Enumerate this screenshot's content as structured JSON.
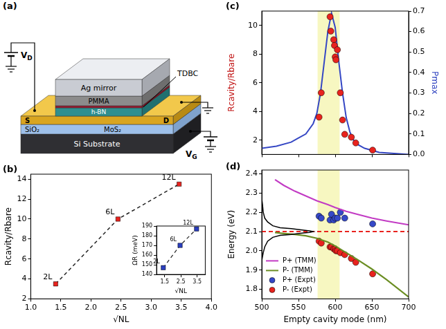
{
  "diagram": {
    "panel": "(a)",
    "labels": {
      "ag": "Ag mirror",
      "pmma": "PMMA",
      "tdbc": "TDBC",
      "hbn": "h-BN",
      "source": "S",
      "drain": "D",
      "sio2": "SiO₂",
      "mos2": "MoS₂",
      "substrate": "Si Substrate",
      "vd": {
        "text": "V",
        "sub": "D"
      },
      "vg": {
        "text": "V",
        "sub": "G"
      }
    }
  },
  "chart_data": [
    {
      "panel": "(b)",
      "type": "line",
      "x_label": "√NL",
      "y_label": "Rcavity/Rbare",
      "x": [
        1.414,
        2.449,
        3.464
      ],
      "values": [
        3.5,
        10,
        13.5
      ],
      "point_labels": [
        "2L",
        "6L",
        "12L"
      ],
      "color": "#e8231e",
      "marker": "square",
      "line_style": "dashed",
      "xlim": [
        1,
        4
      ],
      "xticks": [
        {
          "value": 1,
          "label": "1.0"
        },
        1.5,
        {
          "value": 2,
          "label": "2.0"
        },
        2.5,
        {
          "value": 3,
          "label": "3.0"
        },
        3.5,
        {
          "value": 4,
          "label": "4.0"
        }
      ],
      "ylim": [
        2,
        14.5
      ],
      "yticks": [
        2,
        4,
        6,
        8,
        10,
        12,
        14
      ],
      "grid": false,
      "inset": {
        "type": "line",
        "x_label": "√NL",
        "y_label": "ΩR (meV)",
        "x": [
          1.414,
          2.449,
          3.464
        ],
        "values": [
          147,
          170,
          187
        ],
        "point_labels": [
          "2L",
          "6L",
          "12L"
        ],
        "color": "#2b3fbf",
        "marker": "square",
        "line_style": "dashed",
        "xlim": [
          1,
          4
        ],
        "xticks": [
          1.5,
          2.5,
          3.5
        ],
        "ylim": [
          140,
          190
        ],
        "yticks": [
          140,
          150,
          160,
          170,
          180,
          190
        ],
        "grid": false
      }
    },
    {
      "panel": "(c)",
      "type": "scatter",
      "y_label": "Rcavity/Rbare",
      "y2_label": "Pmax",
      "xlim": [
        500,
        700
      ],
      "xticks": [
        500,
        550,
        600,
        650,
        700
      ],
      "ylim": [
        1,
        11
      ],
      "yticks": [
        2,
        4,
        6,
        8,
        10
      ],
      "y2lim": [
        0,
        0.7
      ],
      "y2ticks": [
        {
          "value": 0,
          "label": "0.0"
        },
        0.1,
        0.2,
        0.3,
        0.4,
        0.5,
        0.6,
        0.7
      ],
      "tick_labels": "y",
      "grid": false,
      "highlight": {
        "range": [
          576,
          606
        ],
        "color": "#f3f3a6"
      },
      "series": [
        {
          "type": "scatter",
          "marker": "circle",
          "color": "#e8231e",
          "x": [
            578,
            581,
            593,
            594,
            598,
            599,
            600,
            601,
            603,
            607,
            610,
            613,
            622,
            628,
            651
          ],
          "values": [
            3.6,
            5.3,
            10.6,
            9.6,
            9.0,
            8.6,
            7.8,
            7.6,
            8.3,
            5.3,
            3.4,
            2.4,
            2.2,
            1.8,
            1.3
          ]
        },
        {
          "type": "line",
          "axis": "y2",
          "color": "#3547c4",
          "line_style": "solid",
          "x": [
            500,
            520,
            540,
            550,
            560,
            570,
            575,
            580,
            585,
            590,
            595,
            600,
            605,
            610,
            615,
            620,
            625,
            630,
            640,
            650,
            660,
            680,
            700
          ],
          "values": [
            0.03,
            0.04,
            0.06,
            0.08,
            0.1,
            0.15,
            0.2,
            0.3,
            0.45,
            0.6,
            0.69,
            0.62,
            0.45,
            0.3,
            0.18,
            0.11,
            0.07,
            0.05,
            0.03,
            0.02,
            0.01,
            0.005,
            0
          ]
        }
      ]
    },
    {
      "panel": "(d)",
      "type": "scatter",
      "x_label": "Empty cavity mode (nm)",
      "y_label": "Energy (eV)",
      "xlim": [
        500,
        700
      ],
      "xticks": [
        500,
        550,
        600,
        650,
        700
      ],
      "ylim": [
        1.75,
        2.42
      ],
      "yticks": [
        1.8,
        1.9,
        {
          "value": 2,
          "label": "2.0"
        },
        2.1,
        2.2,
        2.3,
        2.4
      ],
      "grid": false,
      "legend": "lower left",
      "highlight": {
        "range": [
          576,
          606
        ],
        "color": "#f3f3a6"
      },
      "reference_line": {
        "y": 2.1,
        "color": "#e8231e",
        "line_style": "dashed"
      },
      "absorption_curve": {
        "color": "#000000",
        "x": [
          500,
          501,
          502,
          504,
          508,
          515,
          525,
          540,
          555,
          565,
          570,
          565,
          555,
          540,
          525,
          515,
          508,
          504,
          502,
          501,
          500
        ],
        "values": [
          2.27,
          2.24,
          2.2,
          2.17,
          2.15,
          2.13,
          2.12,
          2.115,
          2.108,
          2.104,
          2.1,
          2.096,
          2.092,
          2.085,
          2.08,
          2.07,
          2.05,
          2.02,
          1.99,
          1.97,
          1.95
        ]
      },
      "series": [
        {
          "name": "P+ (TMM)",
          "type": "line",
          "line_style": "solid",
          "color": "#c23bc4",
          "x": [
            518,
            530,
            545,
            560,
            575,
            590,
            600,
            615,
            630,
            650,
            670,
            700
          ],
          "values": [
            2.37,
            2.34,
            2.31,
            2.285,
            2.26,
            2.24,
            2.225,
            2.205,
            2.19,
            2.17,
            2.155,
            2.135
          ]
        },
        {
          "name": "P- (TMM)",
          "type": "line",
          "line_style": "solid",
          "color": "#6b8e23",
          "x": [
            518,
            530,
            545,
            560,
            575,
            590,
            600,
            615,
            630,
            650,
            670,
            700
          ],
          "values": [
            2.095,
            2.09,
            2.085,
            2.078,
            2.065,
            2.045,
            2.025,
            1.99,
            1.955,
            1.905,
            1.85,
            1.76
          ]
        },
        {
          "name": "P+ (Expt)",
          "type": "scatter",
          "marker": "circle",
          "color": "#3548c8",
          "x": [
            578,
            581,
            593,
            595,
            598,
            600,
            603,
            607,
            613,
            651
          ],
          "values": [
            2.18,
            2.17,
            2.16,
            2.19,
            2.16,
            2.17,
            2.17,
            2.2,
            2.17,
            2.14
          ]
        },
        {
          "name": "P- (Expt)",
          "type": "scatter",
          "marker": "circle",
          "color": "#e8231e",
          "x": [
            578,
            581,
            593,
            595,
            598,
            600,
            601,
            603,
            607,
            613,
            622,
            628,
            651
          ],
          "values": [
            2.05,
            2.04,
            2.02,
            2.02,
            2.01,
            2.01,
            2.0,
            2.0,
            1.99,
            1.98,
            1.96,
            1.94,
            1.88
          ]
        }
      ]
    }
  ]
}
